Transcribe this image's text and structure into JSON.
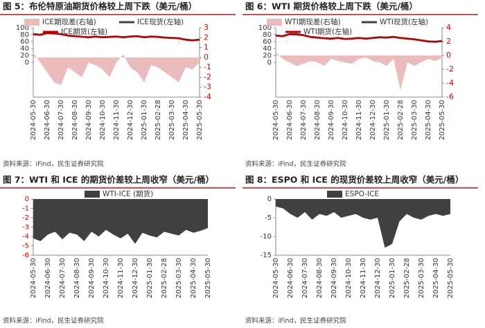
{
  "chart_data": [
    {
      "type": "line",
      "title": "图 5：布伦特原油期货价格较上周下跌（美元/桶）",
      "source": "资料来源：iFind，民生证券研究院",
      "categories": [
        "2024-05-30",
        null,
        "2024-06-30",
        null,
        "2024-07-30",
        null,
        "2024-08-30",
        null,
        "2024-09-30",
        null,
        "2024-10-30",
        null,
        "2024-11-30",
        null,
        "2024-12-30",
        null,
        "2025-01-30",
        null,
        "2025-02-28",
        null,
        "2025-03-30",
        null,
        "2025-04-30",
        null,
        "2025-05-30"
      ],
      "series": [
        {
          "name": "ICE期现差(右轴)",
          "type": "area",
          "axis": "y2",
          "color": "#ebbcbc",
          "values": [
            0.5,
            -0.5,
            -1.5,
            -2.5,
            -2.8,
            -1,
            -1.5,
            -2,
            -0.5,
            -0.8,
            -1.2,
            -2,
            -0.5,
            0.3,
            -1,
            -1.5,
            -2.5,
            -0.8,
            -1,
            -1.5,
            -2,
            -2.5,
            -1,
            -1.2,
            -0.5
          ]
        },
        {
          "name": "ICE现货(左轴)",
          "type": "line",
          "color": "#404040",
          "values": [
            82,
            80,
            85,
            84,
            82,
            78,
            76,
            74,
            73,
            75,
            73,
            74,
            75,
            73,
            75,
            76,
            73,
            75,
            74,
            72,
            71,
            70,
            66,
            64,
            66
          ]
        },
        {
          "name": "ICE期货(左轴)",
          "type": "line",
          "color": "#c00000",
          "values": [
            81,
            79,
            84,
            83,
            81,
            77,
            75,
            74,
            72,
            74,
            72,
            73,
            74,
            72,
            74,
            75,
            72,
            74,
            73,
            71,
            70,
            69,
            65,
            63,
            65
          ]
        }
      ],
      "ylim": [
        -100,
        100
      ],
      "yticks": [
        0,
        20,
        40,
        60,
        80,
        100
      ],
      "y2lim": [
        -4,
        3
      ],
      "y2ticks": [
        -4,
        -3,
        -2,
        -1,
        0,
        1,
        2,
        3
      ],
      "y2tick_color": "#c00000"
    },
    {
      "type": "line",
      "title": "图 6：WTI 期货价格较上周下跌（美元/桶）",
      "source": "资料来源：iFind，民生证券研究院",
      "categories": [
        "2024-05-30",
        null,
        "2024-06-30",
        null,
        "2024-07-30",
        null,
        "2024-08-30",
        null,
        "2024-09-30",
        null,
        "2024-10-30",
        null,
        "2024-11-30",
        null,
        "2024-12-30",
        null,
        "2025-01-30",
        null,
        "2025-02-28",
        null,
        "2025-03-30",
        null,
        "2025-04-30",
        null,
        "2025-05-30"
      ],
      "series": [
        {
          "name": "WTI期现差(右轴)",
          "type": "area",
          "axis": "y2",
          "color": "#ebbcbc",
          "values": [
            0.5,
            -0.5,
            -1,
            -1.5,
            -1.2,
            -0.8,
            -1,
            -1.5,
            -0.5,
            -0.8,
            -1,
            -1.2,
            -0.5,
            -0.3,
            -0.8,
            -1,
            -1.5,
            -0.5,
            -5,
            -1,
            -1.5,
            -1,
            -0.5,
            -0.8,
            -0.3
          ]
        },
        {
          "name": "WTI现货(左轴)",
          "type": "line",
          "color": "#404040",
          "values": [
            78,
            76,
            82,
            82,
            79,
            74,
            72,
            70,
            69,
            71,
            68,
            69,
            71,
            69,
            71,
            73,
            72,
            74,
            71,
            69,
            67,
            64,
            61,
            60,
            62
          ]
        },
        {
          "name": "WTI期货(左轴)",
          "type": "line",
          "color": "#c00000",
          "values": [
            77,
            75,
            81,
            80,
            78,
            73,
            71,
            69,
            68,
            70,
            67,
            68,
            70,
            68,
            70,
            72,
            71,
            73,
            70,
            68,
            66,
            63,
            60,
            59,
            61
          ]
        }
      ],
      "ylim": [
        -100,
        100
      ],
      "yticks": [
        0,
        20,
        40,
        60,
        80,
        100
      ],
      "y2lim": [
        -6,
        4
      ],
      "y2ticks": [
        -6,
        -4,
        -2,
        0,
        2,
        4
      ],
      "y2tick_color": "#c00000"
    },
    {
      "type": "area",
      "title": "图 7：WTI 和 ICE 的期货价差较上周收窄（美元/桶）",
      "source": "资料来源：iFind，民生证券研究院",
      "categories": [
        "2024-05-30",
        null,
        "2024-06-30",
        null,
        "2024-07-30",
        null,
        "2024-08-30",
        null,
        "2024-09-30",
        null,
        "2024-10-30",
        null,
        "2024-11-30",
        null,
        "2024-12-30",
        null,
        "2025-01-30",
        null,
        "2025-02-28",
        null,
        "2025-03-30",
        null,
        "2025-04-30",
        null,
        "2025-05-30"
      ],
      "series": [
        {
          "name": "WTI-ICE (期货)",
          "type": "area",
          "color": "#404040",
          "values": [
            -4.2,
            -4.5,
            -3.8,
            -3.5,
            -4.3,
            -3.6,
            -3.8,
            -4.5,
            -3.5,
            -4,
            -3.3,
            -3.8,
            -4.2,
            -3.7,
            -4.8,
            -3.6,
            -3.9,
            -4.1,
            -3.5,
            -3.7,
            -3.9,
            -3.3,
            -3.6,
            -3.4,
            -3.1
          ]
        }
      ],
      "ylim": [
        -6,
        0
      ],
      "yticks": [
        -6,
        -5,
        -4,
        -3,
        -2,
        -1,
        0
      ],
      "ytick_color": "#c00000"
    },
    {
      "type": "area",
      "title": "图 8：ESPO 和 ICE 的现货价差较上周收窄（美元/桶）",
      "source": "资料来源：iFind，民生证券研究院",
      "categories": [
        "2024-05-30",
        null,
        "2024-06-30",
        null,
        "2024-07-30",
        null,
        "2024-08-30",
        null,
        "2024-09-30",
        null,
        "2024-10-30",
        null,
        "2024-11-30",
        null,
        "2024-12-30",
        null,
        "2025-01-30",
        null,
        "2025-02-28",
        null,
        "2025-03-30",
        null,
        "2025-04-30",
        null,
        "2025-05-30"
      ],
      "series": [
        {
          "name": "ESPO-ICE",
          "type": "area",
          "color": "#404040",
          "values": [
            -2,
            -2.5,
            -4,
            -5,
            -3.5,
            -5.5,
            -4,
            -4.5,
            -3.5,
            -5,
            -4.5,
            -4,
            -5,
            -5.5,
            -5,
            -13,
            -12,
            -6,
            -4,
            -5,
            -5.5,
            -4.5,
            -4,
            -4.5,
            -4
          ]
        }
      ],
      "ylim": [
        -15,
        0
      ],
      "yticks": [
        -15,
        -10,
        -5,
        0
      ]
    }
  ]
}
